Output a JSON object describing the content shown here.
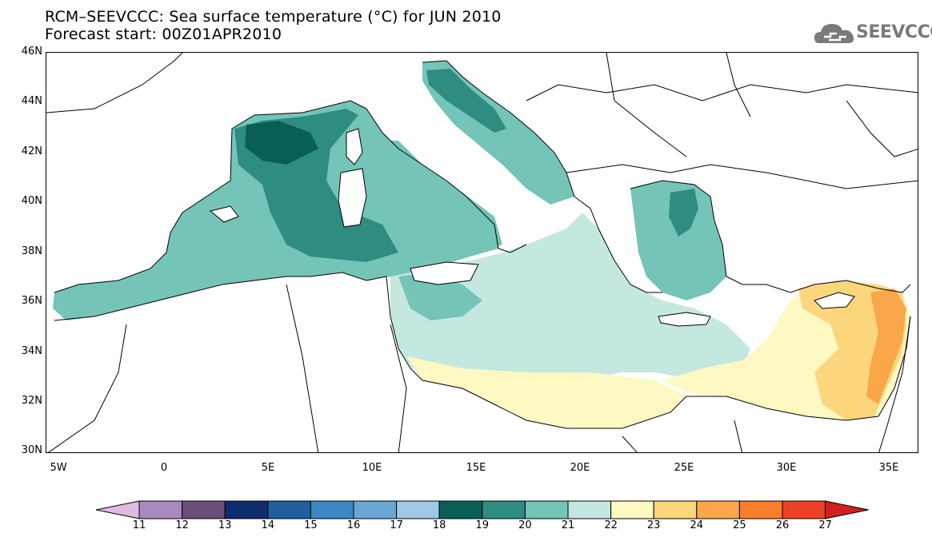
{
  "title": {
    "line1": "RCM–SEEVCCC: Sea surface temperature (°C) for JUN 2010",
    "line2": "Forecast start: 00Z01APR2010"
  },
  "logo": {
    "icon": "cloud-icon",
    "text": "SEEVCCC"
  },
  "axes": {
    "y_labels": [
      "46N",
      "44N",
      "42N",
      "40N",
      "38N",
      "36N",
      "34N",
      "32N",
      "30N"
    ],
    "x_labels": [
      "5W",
      "0",
      "5E",
      "10E",
      "15E",
      "20E",
      "25E",
      "30E",
      "35E"
    ],
    "lon_range": [
      -5.5,
      36.5
    ],
    "lat_range": [
      30,
      46
    ]
  },
  "colorbar": {
    "labels": [
      "11",
      "12",
      "13",
      "14",
      "15",
      "16",
      "17",
      "18",
      "19",
      "20",
      "21",
      "22",
      "23",
      "24",
      "25",
      "26",
      "27"
    ],
    "colors": [
      "#dfbbe0",
      "#aa88c2",
      "#6b4f79",
      "#0e2d6e",
      "#1f5f9e",
      "#3b88c2",
      "#6aa6d6",
      "#9ec8e4",
      "#0a5f55",
      "#2e8c81",
      "#74c4b8",
      "#c4e8e0",
      "#fef8c2",
      "#fcd67d",
      "#f9a749",
      "#f77e2d",
      "#ee4226",
      "#d11f1f"
    ]
  },
  "map_colors": {
    "land": "#ffffff",
    "t19": "#0a5f55",
    "t20": "#2e8c81",
    "t21": "#74c4b8",
    "t22": "#c4e8e0",
    "t23": "#fef8c2",
    "t24": "#fcd67d",
    "t25": "#f9a749"
  }
}
